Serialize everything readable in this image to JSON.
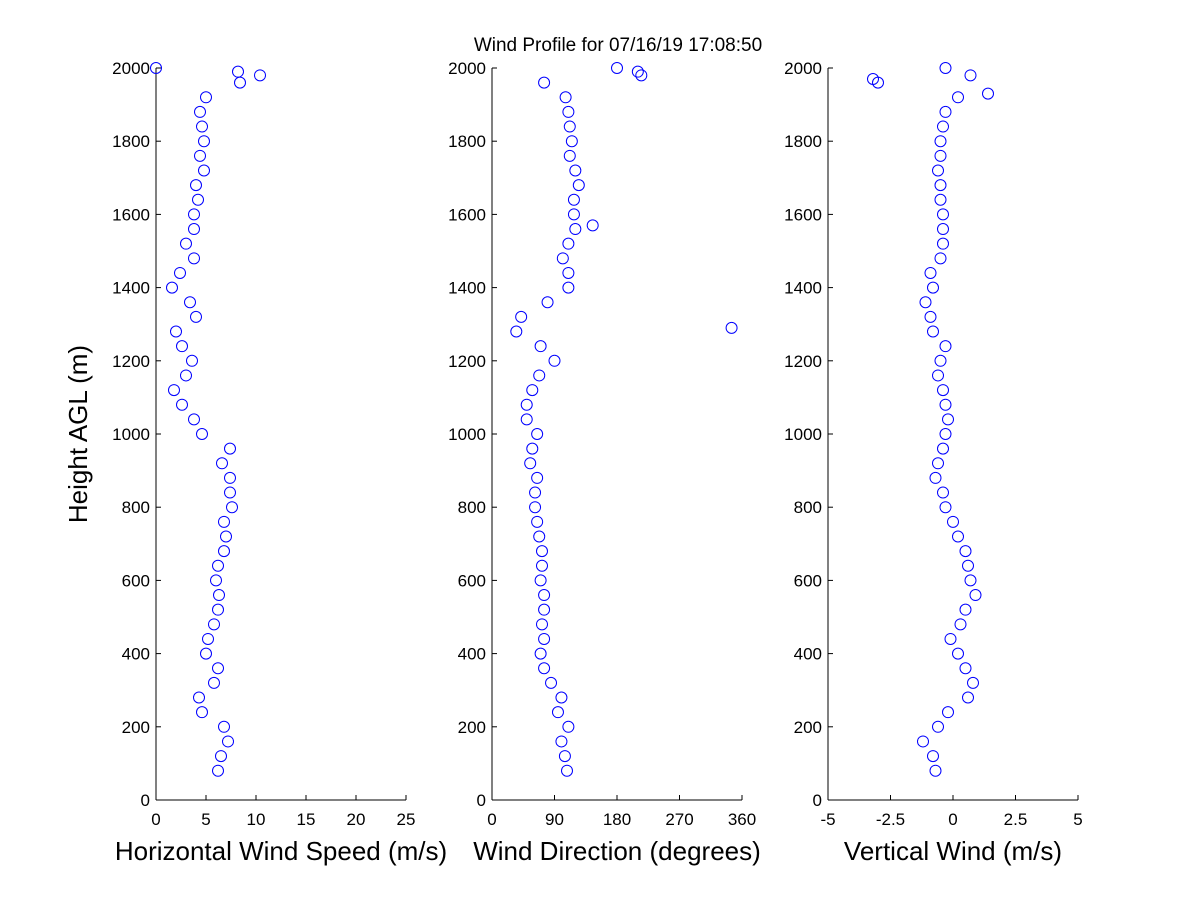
{
  "title": "Wind Profile for  07/16/19 17:08:50",
  "chart_data": [
    {
      "type": "scatter",
      "xlabel": "Horizontal Wind Speed (m/s)",
      "ylabel": "Height AGL (m)",
      "color": "#0000ff",
      "xlim": [
        0,
        25
      ],
      "xticks": [
        0,
        5,
        10,
        15,
        20,
        25
      ],
      "ylim": [
        0,
        2000
      ],
      "yticks": [
        0,
        200,
        400,
        600,
        800,
        1000,
        1200,
        1400,
        1600,
        1800,
        2000
      ],
      "x": [
        6.2,
        6.5,
        7.2,
        6.8,
        4.6,
        4.3,
        5.8,
        6.2,
        5.0,
        5.2,
        5.8,
        6.2,
        6.3,
        6.0,
        6.2,
        6.8,
        7.0,
        6.8,
        7.6,
        7.4,
        7.4,
        6.6,
        7.4,
        4.6,
        3.8,
        2.6,
        1.8,
        3.0,
        3.6,
        2.6,
        2.0,
        4.0,
        3.4,
        1.6,
        2.4,
        3.8,
        3.0,
        3.8,
        3.8,
        4.2,
        4.0,
        4.8,
        4.4,
        4.8,
        4.6,
        4.4,
        5.0,
        8.4,
        0.0,
        10.4,
        8.2
      ],
      "values": [
        80,
        120,
        160,
        200,
        240,
        280,
        320,
        360,
        400,
        440,
        480,
        520,
        560,
        600,
        640,
        680,
        720,
        760,
        800,
        840,
        880,
        920,
        960,
        1000,
        1040,
        1080,
        1120,
        1160,
        1200,
        1240,
        1280,
        1320,
        1360,
        1400,
        1440,
        1480,
        1520,
        1560,
        1600,
        1640,
        1680,
        1720,
        1760,
        1800,
        1840,
        1880,
        1920,
        1960,
        2000,
        1980,
        1990
      ]
    },
    {
      "type": "scatter",
      "xlabel": "Wind Direction (degrees)",
      "color": "#0000ff",
      "xlim": [
        0,
        360
      ],
      "xticks": [
        0,
        90,
        180,
        270,
        360
      ],
      "ylim": [
        0,
        2000
      ],
      "yticks": [
        0,
        200,
        400,
        600,
        800,
        1000,
        1200,
        1400,
        1600,
        1800,
        2000
      ],
      "x": [
        108,
        105,
        100,
        110,
        95,
        100,
        85,
        75,
        70,
        75,
        72,
        75,
        75,
        70,
        72,
        72,
        68,
        65,
        62,
        62,
        65,
        55,
        58,
        65,
        50,
        50,
        58,
        68,
        90,
        70,
        35,
        42,
        80,
        110,
        110,
        102,
        110,
        120,
        118,
        118,
        125,
        120,
        112,
        115,
        112,
        110,
        106,
        75,
        180,
        345,
        145,
        215,
        210
      ],
      "values": [
        80,
        120,
        160,
        200,
        240,
        280,
        320,
        360,
        400,
        440,
        480,
        520,
        560,
        600,
        640,
        680,
        720,
        760,
        800,
        840,
        880,
        920,
        960,
        1000,
        1040,
        1080,
        1120,
        1160,
        1200,
        1240,
        1280,
        1320,
        1360,
        1400,
        1440,
        1480,
        1520,
        1560,
        1600,
        1640,
        1680,
        1720,
        1760,
        1800,
        1840,
        1880,
        1920,
        1960,
        2000,
        1290,
        1570,
        1980,
        1990
      ]
    },
    {
      "type": "scatter",
      "xlabel": "Vertical Wind (m/s)",
      "color": "#0000ff",
      "xlim": [
        -5,
        5
      ],
      "xticks": [
        -5,
        -2.5,
        0,
        2.5,
        5
      ],
      "ylim": [
        0,
        2000
      ],
      "yticks": [
        0,
        200,
        400,
        600,
        800,
        1000,
        1200,
        1400,
        1600,
        1800,
        2000
      ],
      "x": [
        -0.7,
        -0.8,
        -1.2,
        -0.6,
        -0.2,
        0.6,
        0.8,
        0.5,
        0.2,
        -0.1,
        0.3,
        0.5,
        0.9,
        0.7,
        0.6,
        0.5,
        0.2,
        0,
        -0.3,
        -0.4,
        -0.7,
        -0.6,
        -0.4,
        -0.3,
        -0.2,
        -0.3,
        -0.4,
        -0.6,
        -0.5,
        -0.3,
        -0.8,
        -0.9,
        -1.1,
        -0.8,
        -0.9,
        -0.5,
        -0.4,
        -0.4,
        -0.4,
        -0.5,
        -0.5,
        -0.6,
        -0.5,
        -0.5,
        -0.4,
        -0.3,
        0.2,
        -3.0,
        -0.3,
        1.4,
        0.7,
        -3.2
      ],
      "values": [
        80,
        120,
        160,
        200,
        240,
        280,
        320,
        360,
        400,
        440,
        480,
        520,
        560,
        600,
        640,
        680,
        720,
        760,
        800,
        840,
        880,
        920,
        960,
        1000,
        1040,
        1080,
        1120,
        1160,
        1200,
        1240,
        1280,
        1320,
        1360,
        1400,
        1440,
        1480,
        1520,
        1560,
        1600,
        1640,
        1680,
        1720,
        1760,
        1800,
        1840,
        1880,
        1920,
        1960,
        2000,
        1930,
        1980,
        1970
      ]
    }
  ]
}
